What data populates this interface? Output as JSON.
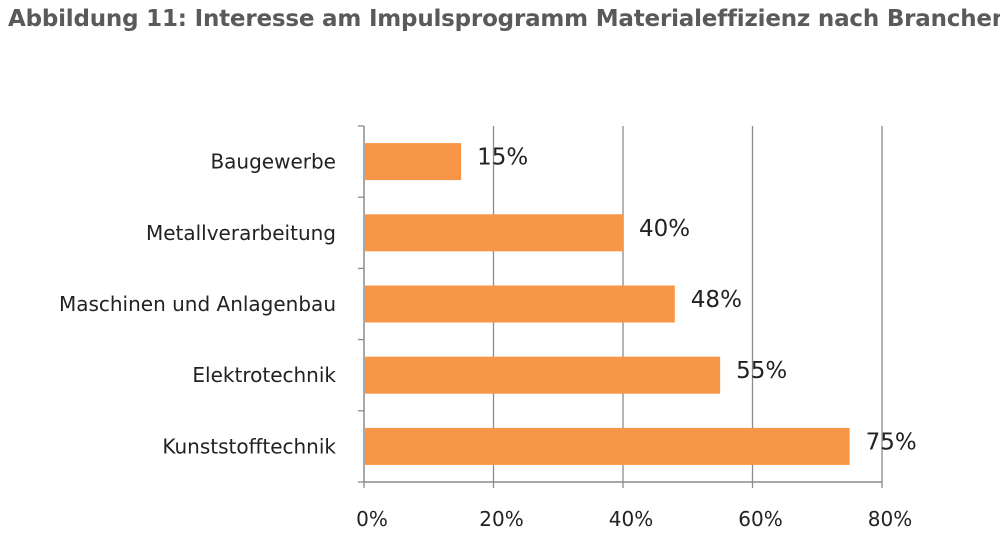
{
  "chart_data": {
    "type": "bar",
    "orientation": "horizontal",
    "title": "Abbildung 11: Interesse am Impulsprogramm Materialeffizienz nach Branchen.",
    "categories": [
      "Baugewerbe",
      "Metallverarbeitung",
      "Maschinen und Anlagenbau",
      "Elektrotechnik",
      "Kunststofftechnik"
    ],
    "values": [
      15,
      40,
      48,
      55,
      75
    ],
    "value_labels": [
      "15%",
      "40%",
      "48%",
      "55%",
      "75%"
    ],
    "xticks": [
      "0%",
      "20%",
      "40%",
      "60%",
      "80%"
    ],
    "xlim": [
      0,
      80
    ],
    "grid": "vertical",
    "legend": "none",
    "bar_color": "#f79646",
    "grid_color": "#8c8c8c",
    "axis_color": "#8c8c8c"
  }
}
